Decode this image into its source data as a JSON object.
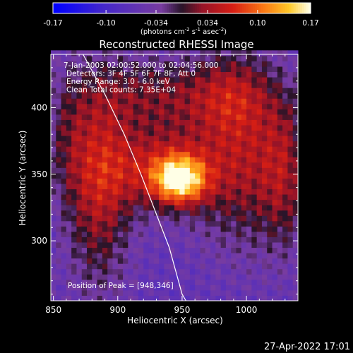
{
  "chart_data": {
    "type": "heatmap",
    "title": "Reconstructed RHESSI Image",
    "xlabel": "Heliocentric X (arcsec)",
    "ylabel": "Heliocentric Y (arcsec)",
    "x_ticks": [
      850,
      900,
      950,
      1000
    ],
    "y_ticks": [
      300,
      350,
      400
    ],
    "xlim": [
      848,
      1040
    ],
    "ylim": [
      255,
      440
    ],
    "colorbar": {
      "ticks": [
        "-0.17",
        "-0.10",
        "-0.034",
        "0.034",
        "0.10",
        "0.17"
      ],
      "tick_values": [
        -0.17,
        -0.1,
        -0.034,
        0.034,
        0.1,
        0.17
      ],
      "range": [
        -0.17,
        0.17
      ],
      "units": "(photons cm",
      "units_sup1": "-2",
      "units_mid": " s",
      "units_sup2": "-1",
      "units_mid2": " asec",
      "units_sup3": "-2",
      "units_end": ")"
    },
    "annotations": [
      "7-Jan-2003 02:00:52.000 to 02:04:56.000",
      "Detectors: 3F 4F 5F 6F 7F 8F, Att 0",
      "Energy Range: 3.0 - 6.0 keV",
      "Clean    Total counts: 7.35E+04"
    ],
    "peak_label": "Position of Peak = [948,346]",
    "peak": [
      948,
      346
    ],
    "limb_points": [
      [
        873,
        440
      ],
      [
        890,
        410
      ],
      [
        905,
        380
      ],
      [
        918,
        350
      ],
      [
        930,
        320
      ],
      [
        940,
        295
      ],
      [
        950,
        260
      ],
      [
        953,
        255
      ]
    ],
    "sources": [
      {
        "x": 948,
        "y": 346,
        "amp": 0.17,
        "sx": 14,
        "sy": 12
      },
      {
        "x": 932,
        "y": 355,
        "amp": 0.1,
        "sx": 30,
        "sy": 22
      },
      {
        "x": 885,
        "y": 345,
        "amp": 0.1,
        "sx": 18,
        "sy": 55
      },
      {
        "x": 1000,
        "y": 360,
        "amp": 0.09,
        "sx": 30,
        "sy": 45
      },
      {
        "x": 930,
        "y": 410,
        "amp": 0.07,
        "sx": 35,
        "sy": 20
      },
      {
        "x": 1030,
        "y": 350,
        "amp": 0.05,
        "sx": 12,
        "sy": 40
      },
      {
        "x": 990,
        "y": 410,
        "amp": 0.06,
        "sx": 22,
        "sy": 22
      },
      {
        "x": 860,
        "y": 380,
        "amp": 0.04,
        "sx": 12,
        "sy": 35
      }
    ],
    "background": -0.06
  },
  "footer": {
    "timestamp": "27-Apr-2022 17:01"
  }
}
